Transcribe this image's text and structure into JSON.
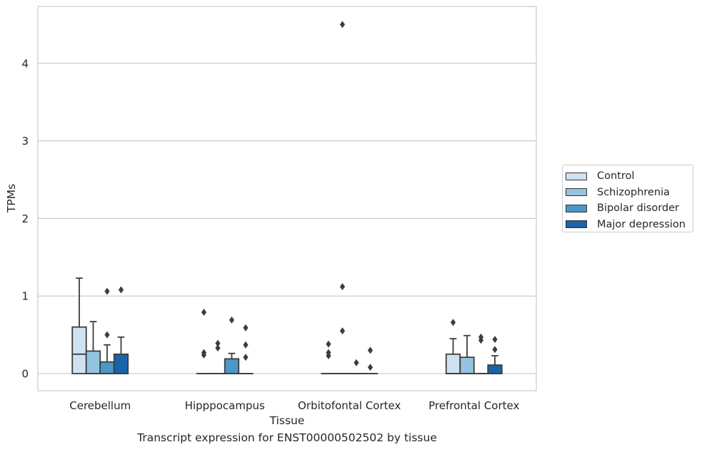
{
  "caption": "Transcript expression for ENST00000502502 by tissue",
  "chart_data": {
    "type": "box",
    "title": "",
    "xlabel": "Tissue",
    "ylabel": "TPMs",
    "ylim": [
      -0.22,
      4.75
    ],
    "yticks": [
      0,
      1,
      2,
      3,
      4
    ],
    "grid": true,
    "legend_position": "right",
    "categories": [
      "Cerebellum",
      "Hipppocampus",
      "Orbitofontal Cortex",
      "Prefrontal Cortex"
    ],
    "series": [
      {
        "name": "Control",
        "color": "#d0e1f2",
        "boxes": [
          {
            "q1": 0,
            "median": 0.25,
            "q3": 0.6,
            "whisker_low": 0,
            "whisker_high": 1.23,
            "outliers": []
          },
          {
            "q1": 0,
            "median": 0,
            "q3": 0,
            "whisker_low": 0,
            "whisker_high": 0,
            "outliers": [
              0.24,
              0.27,
              0.79
            ]
          },
          {
            "q1": 0,
            "median": 0,
            "q3": 0,
            "whisker_low": 0,
            "whisker_high": 0,
            "outliers": [
              0.23,
              0.27,
              0.38
            ]
          },
          {
            "q1": 0,
            "median": 0,
            "q3": 0.25,
            "whisker_low": 0,
            "whisker_high": 0.45,
            "outliers": [
              0.66
            ]
          }
        ]
      },
      {
        "name": "Schizophrenia",
        "color": "#94c4df",
        "boxes": [
          {
            "q1": 0,
            "median": 0,
            "q3": 0.29,
            "whisker_low": 0,
            "whisker_high": 0.67,
            "outliers": []
          },
          {
            "q1": 0,
            "median": 0,
            "q3": 0,
            "whisker_low": 0,
            "whisker_high": 0,
            "outliers": [
              0.33,
              0.39
            ]
          },
          {
            "q1": 0,
            "median": 0,
            "q3": 0,
            "whisker_low": 0,
            "whisker_high": 0,
            "outliers": [
              0.55,
              1.12,
              4.5
            ]
          },
          {
            "q1": 0,
            "median": 0,
            "q3": 0.21,
            "whisker_low": 0,
            "whisker_high": 0.49,
            "outliers": []
          }
        ]
      },
      {
        "name": "Bipolar disorder",
        "color": "#4a98c9",
        "boxes": [
          {
            "q1": 0,
            "median": 0,
            "q3": 0.15,
            "whisker_low": 0,
            "whisker_high": 0.37,
            "outliers": [
              0.5,
              1.06
            ]
          },
          {
            "q1": 0,
            "median": 0,
            "q3": 0.19,
            "whisker_low": 0,
            "whisker_high": 0.26,
            "outliers": [
              0.69
            ]
          },
          {
            "q1": 0,
            "median": 0,
            "q3": 0,
            "whisker_low": 0,
            "whisker_high": 0,
            "outliers": [
              0.14
            ]
          },
          {
            "q1": 0,
            "median": 0,
            "q3": 0,
            "whisker_low": 0,
            "whisker_high": 0,
            "outliers": [
              0.43,
              0.47
            ]
          }
        ]
      },
      {
        "name": "Major depression",
        "color": "#1764ab",
        "boxes": [
          {
            "q1": 0,
            "median": 0,
            "q3": 0.25,
            "whisker_low": 0,
            "whisker_high": 0.47,
            "outliers": [
              1.08
            ]
          },
          {
            "q1": 0,
            "median": 0,
            "q3": 0,
            "whisker_low": 0,
            "whisker_high": 0,
            "outliers": [
              0.21,
              0.37,
              0.59
            ]
          },
          {
            "q1": 0,
            "median": 0,
            "q3": 0,
            "whisker_low": 0,
            "whisker_high": 0,
            "outliers": [
              0.08,
              0.3
            ]
          },
          {
            "q1": 0,
            "median": 0,
            "q3": 0.11,
            "whisker_low": 0,
            "whisker_high": 0.23,
            "outliers": [
              0.31,
              0.44
            ]
          }
        ]
      }
    ]
  }
}
